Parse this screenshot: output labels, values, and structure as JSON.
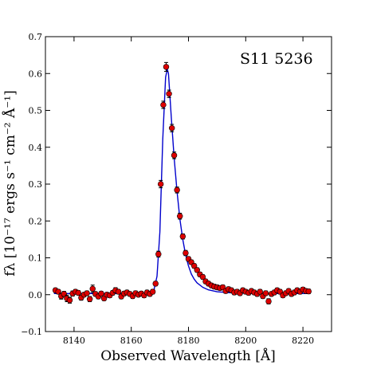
{
  "chart_data": {
    "type": "scatter",
    "annotation": "S11 5236",
    "xlabel": "Observed Wavelength   [Å]",
    "ylabel": "fλ   [10⁻¹⁷ ergs s⁻¹ cm⁻² Å⁻¹]",
    "xlim": [
      8130,
      8230
    ],
    "ylim": [
      -0.1,
      0.7
    ],
    "xticks": [
      8140,
      8160,
      8180,
      8200,
      8220
    ],
    "xtick_labels": [
      "8140",
      "8160",
      "8180",
      "8200",
      "8220"
    ],
    "yticks": [
      -0.1,
      0.0,
      0.1,
      0.2,
      0.3,
      0.4,
      0.5,
      0.6,
      0.7
    ],
    "ytick_labels": [
      "−0.1",
      "0.0",
      "0.1",
      "0.2",
      "0.3",
      "0.4",
      "0.5",
      "0.6",
      "0.7"
    ],
    "grid": false,
    "colors": {
      "points": "#dd0000",
      "point_edge": "#000000",
      "model": "#0000cc"
    },
    "series": [
      {
        "kind": "points_with_errorbars",
        "points": [
          [
            8133.5,
            0.012,
            0.006
          ],
          [
            8134.5,
            0.008,
            0.006
          ],
          [
            8135.5,
            -0.004,
            0.008
          ],
          [
            8136.5,
            0.002,
            0.007
          ],
          [
            8137.5,
            -0.01,
            0.009
          ],
          [
            8138.5,
            -0.015,
            0.008
          ],
          [
            8139.5,
            0.003,
            0.007
          ],
          [
            8140.5,
            0.008,
            0.006
          ],
          [
            8141.5,
            0.005,
            0.006
          ],
          [
            8142.5,
            -0.008,
            0.007
          ],
          [
            8143.5,
            0.0,
            0.006
          ],
          [
            8144.5,
            0.004,
            0.006
          ],
          [
            8145.5,
            -0.012,
            0.007
          ],
          [
            8146.5,
            0.016,
            0.01
          ],
          [
            8147.5,
            0.002,
            0.006
          ],
          [
            8148.5,
            -0.005,
            0.006
          ],
          [
            8149.5,
            0.003,
            0.006
          ],
          [
            8150.5,
            -0.01,
            0.006
          ],
          [
            8151.5,
            0.0,
            0.006
          ],
          [
            8152.5,
            -0.002,
            0.006
          ],
          [
            8153.5,
            0.005,
            0.006
          ],
          [
            8154.5,
            0.012,
            0.007
          ],
          [
            8155.5,
            0.008,
            0.006
          ],
          [
            8156.5,
            -0.005,
            0.006
          ],
          [
            8157.5,
            0.003,
            0.006
          ],
          [
            8158.5,
            0.006,
            0.006
          ],
          [
            8159.5,
            0.002,
            0.006
          ],
          [
            8160.5,
            -0.004,
            0.006
          ],
          [
            8161.5,
            0.004,
            0.006
          ],
          [
            8162.5,
            0.0,
            0.006
          ],
          [
            8163.5,
            0.003,
            0.006
          ],
          [
            8164.5,
            -0.002,
            0.006
          ],
          [
            8165.5,
            0.006,
            0.006
          ],
          [
            8166.5,
            0.002,
            0.006
          ],
          [
            8167.5,
            0.008,
            0.006
          ],
          [
            8168.5,
            0.03,
            0.006
          ],
          [
            8169.5,
            0.11,
            0.008
          ],
          [
            8170.3,
            0.3,
            0.01
          ],
          [
            8171.2,
            0.515,
            0.01
          ],
          [
            8172.2,
            0.618,
            0.012
          ],
          [
            8173.2,
            0.545,
            0.01
          ],
          [
            8174.2,
            0.452,
            0.01
          ],
          [
            8175.0,
            0.378,
            0.009
          ],
          [
            8176.0,
            0.284,
            0.008
          ],
          [
            8177.0,
            0.213,
            0.008
          ],
          [
            8178.0,
            0.158,
            0.007
          ],
          [
            8179.0,
            0.113,
            0.007
          ],
          [
            8180.0,
            0.097,
            0.006
          ],
          [
            8181.0,
            0.088,
            0.006
          ],
          [
            8182.0,
            0.078,
            0.006
          ],
          [
            8183.0,
            0.067,
            0.006
          ],
          [
            8184.0,
            0.055,
            0.006
          ],
          [
            8185.0,
            0.048,
            0.006
          ],
          [
            8186.0,
            0.036,
            0.006
          ],
          [
            8187.0,
            0.03,
            0.006
          ],
          [
            8188.0,
            0.025,
            0.006
          ],
          [
            8189.0,
            0.022,
            0.006
          ],
          [
            8190.0,
            0.02,
            0.006
          ],
          [
            8191.0,
            0.018,
            0.006
          ],
          [
            8192.0,
            0.02,
            0.006
          ],
          [
            8193.0,
            0.01,
            0.006
          ],
          [
            8194.0,
            0.015,
            0.006
          ],
          [
            8195.0,
            0.012,
            0.006
          ],
          [
            8196.0,
            0.006,
            0.006
          ],
          [
            8197.0,
            0.008,
            0.006
          ],
          [
            8198.0,
            0.004,
            0.006
          ],
          [
            8199.0,
            0.012,
            0.006
          ],
          [
            8200.0,
            0.008,
            0.006
          ],
          [
            8201.0,
            0.005,
            0.006
          ],
          [
            8202.0,
            0.01,
            0.006
          ],
          [
            8203.0,
            0.006,
            0.006
          ],
          [
            8204.0,
            0.002,
            0.006
          ],
          [
            8205.0,
            0.008,
            0.006
          ],
          [
            8206.0,
            -0.004,
            0.006
          ],
          [
            8207.0,
            0.004,
            0.006
          ],
          [
            8208.0,
            -0.018,
            0.007
          ],
          [
            8209.0,
            0.002,
            0.006
          ],
          [
            8210.0,
            0.006,
            0.006
          ],
          [
            8211.0,
            0.012,
            0.006
          ],
          [
            8212.0,
            0.008,
            0.006
          ],
          [
            8213.0,
            -0.002,
            0.006
          ],
          [
            8214.0,
            0.004,
            0.006
          ],
          [
            8215.0,
            0.01,
            0.006
          ],
          [
            8216.0,
            0.002,
            0.006
          ],
          [
            8217.0,
            0.006,
            0.006
          ],
          [
            8218.0,
            0.012,
            0.006
          ],
          [
            8219.0,
            0.008,
            0.006
          ],
          [
            8220.0,
            0.014,
            0.006
          ],
          [
            8221.0,
            0.01,
            0.006
          ],
          [
            8222.0,
            0.009,
            0.006
          ]
        ]
      },
      {
        "kind": "model_line",
        "points": [
          [
            8133.0,
            0.003
          ],
          [
            8150.0,
            0.003
          ],
          [
            8165.0,
            0.003
          ],
          [
            8167.0,
            0.006
          ],
          [
            8168.0,
            0.015
          ],
          [
            8169.0,
            0.05
          ],
          [
            8170.0,
            0.17
          ],
          [
            8171.0,
            0.42
          ],
          [
            8172.0,
            0.59
          ],
          [
            8172.6,
            0.612
          ],
          [
            8173.0,
            0.6
          ],
          [
            8174.0,
            0.48
          ],
          [
            8175.0,
            0.37
          ],
          [
            8176.0,
            0.28
          ],
          [
            8177.0,
            0.205
          ],
          [
            8178.0,
            0.15
          ],
          [
            8179.0,
            0.108
          ],
          [
            8180.0,
            0.078
          ],
          [
            8181.0,
            0.056
          ],
          [
            8182.0,
            0.042
          ],
          [
            8183.0,
            0.032
          ],
          [
            8185.0,
            0.02
          ],
          [
            8187.0,
            0.013
          ],
          [
            8190.0,
            0.008
          ],
          [
            8195.0,
            0.005
          ],
          [
            8200.0,
            0.004
          ],
          [
            8210.0,
            0.003
          ],
          [
            8222.0,
            0.003
          ]
        ]
      }
    ]
  }
}
